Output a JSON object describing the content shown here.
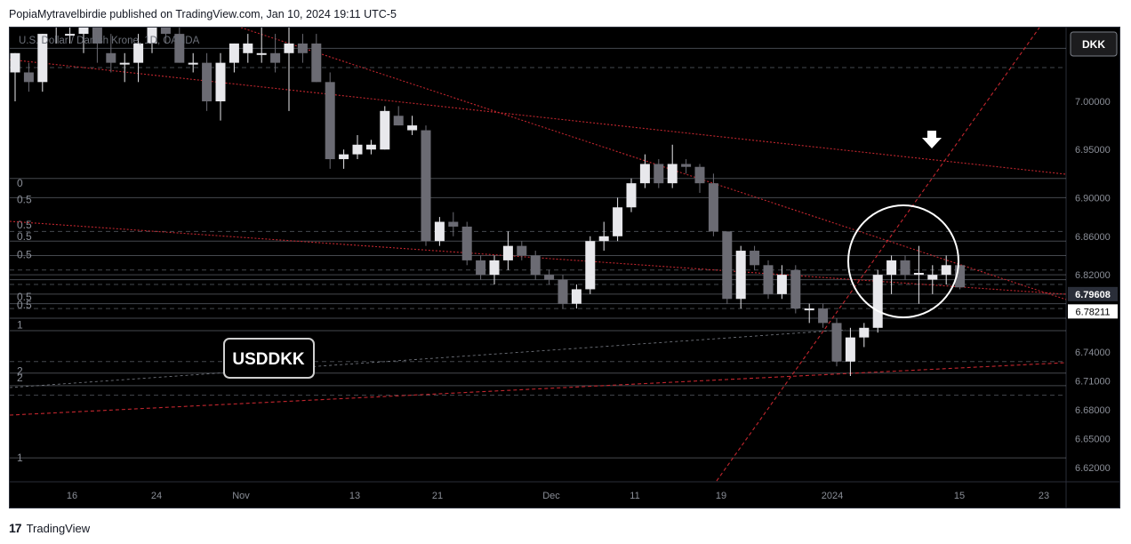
{
  "header": {
    "published_text": "PopiaMytravelbirdie published on TradingView.com, Jan 10, 2024 19:11 UTC-5"
  },
  "footer": {
    "brand_mark": "17",
    "brand": "TradingView"
  },
  "symbol_label": "U.S. Dollar / Danish Krone, 1D, OANDA",
  "annotation_label": "USDDKK",
  "chart_data": {
    "type": "candlestick",
    "currency_badge": "DKK",
    "ylim": [
      6.6,
      7.065
    ],
    "y_ticks": [
      "7.00000",
      "6.95000",
      "6.90000",
      "6.86000",
      "6.82000",
      "6.74000",
      "6.71000",
      "6.68000",
      "6.65000",
      "6.62000"
    ],
    "x_ticks": [
      "16",
      "24",
      "Nov",
      "13",
      "21",
      "Dec",
      "11",
      "19",
      "2024",
      "15",
      "23"
    ],
    "price_labels": [
      {
        "value": "6.79608",
        "style": "dark"
      },
      {
        "value": "6.78211",
        "style": "light"
      }
    ],
    "colors": {
      "background": "#000000",
      "up": "#e8e8ec",
      "down": "#6b6b73",
      "trendline": "#c2262e",
      "level": "#9aa0ad"
    },
    "candles": [
      {
        "o": 7.03,
        "h": 7.05,
        "l": 7.0,
        "c": 7.05
      },
      {
        "o": 7.03,
        "h": 7.04,
        "l": 7.01,
        "c": 7.02
      },
      {
        "o": 7.02,
        "h": 7.07,
        "l": 7.01,
        "c": 7.07
      },
      {
        "o": 7.08,
        "h": 7.1,
        "l": 7.06,
        "c": 7.09
      },
      {
        "o": 7.07,
        "h": 7.09,
        "l": 7.06,
        "c": 7.07
      },
      {
        "o": 7.07,
        "h": 7.11,
        "l": 7.05,
        "c": 7.1
      },
      {
        "o": 7.08,
        "h": 7.1,
        "l": 7.04,
        "c": 7.06
      },
      {
        "o": 7.05,
        "h": 7.07,
        "l": 7.03,
        "c": 7.04
      },
      {
        "o": 7.04,
        "h": 7.05,
        "l": 7.02,
        "c": 7.04
      },
      {
        "o": 7.04,
        "h": 7.07,
        "l": 7.02,
        "c": 7.06
      },
      {
        "o": 7.06,
        "h": 7.1,
        "l": 7.05,
        "c": 7.08
      },
      {
        "o": 7.08,
        "h": 7.09,
        "l": 7.06,
        "c": 7.07
      },
      {
        "o": 7.07,
        "h": 7.08,
        "l": 7.04,
        "c": 7.04
      },
      {
        "o": 7.04,
        "h": 7.05,
        "l": 7.03,
        "c": 7.04
      },
      {
        "o": 7.04,
        "h": 7.05,
        "l": 6.99,
        "c": 7.0
      },
      {
        "o": 7.0,
        "h": 7.05,
        "l": 6.98,
        "c": 7.04
      },
      {
        "o": 7.04,
        "h": 7.06,
        "l": 7.03,
        "c": 7.06
      },
      {
        "o": 7.05,
        "h": 7.07,
        "l": 7.04,
        "c": 7.06
      },
      {
        "o": 7.05,
        "h": 7.08,
        "l": 7.04,
        "c": 7.05
      },
      {
        "o": 7.05,
        "h": 7.07,
        "l": 7.03,
        "c": 7.04
      },
      {
        "o": 7.05,
        "h": 7.09,
        "l": 6.99,
        "c": 7.06
      },
      {
        "o": 7.06,
        "h": 7.07,
        "l": 7.04,
        "c": 7.05
      },
      {
        "o": 7.06,
        "h": 7.07,
        "l": 7.02,
        "c": 7.02
      },
      {
        "o": 7.02,
        "h": 7.03,
        "l": 6.93,
        "c": 6.94
      },
      {
        "o": 6.94,
        "h": 6.95,
        "l": 6.93,
        "c": 6.945
      },
      {
        "o": 6.945,
        "h": 6.965,
        "l": 6.94,
        "c": 6.955
      },
      {
        "o": 6.95,
        "h": 6.96,
        "l": 6.945,
        "c": 6.955
      },
      {
        "o": 6.95,
        "h": 6.995,
        "l": 6.95,
        "c": 6.99
      },
      {
        "o": 6.985,
        "h": 6.995,
        "l": 6.975,
        "c": 6.975
      },
      {
        "o": 6.97,
        "h": 6.985,
        "l": 6.965,
        "c": 6.975
      },
      {
        "o": 6.97,
        "h": 6.975,
        "l": 6.85,
        "c": 6.855
      },
      {
        "o": 6.855,
        "h": 6.88,
        "l": 6.85,
        "c": 6.875
      },
      {
        "o": 6.875,
        "h": 6.885,
        "l": 6.86,
        "c": 6.87
      },
      {
        "o": 6.87,
        "h": 6.875,
        "l": 6.83,
        "c": 6.835
      },
      {
        "o": 6.835,
        "h": 6.84,
        "l": 6.815,
        "c": 6.82
      },
      {
        "o": 6.82,
        "h": 6.84,
        "l": 6.81,
        "c": 6.835
      },
      {
        "o": 6.835,
        "h": 6.865,
        "l": 6.825,
        "c": 6.85
      },
      {
        "o": 6.85,
        "h": 6.855,
        "l": 6.835,
        "c": 6.84
      },
      {
        "o": 6.84,
        "h": 6.845,
        "l": 6.815,
        "c": 6.82
      },
      {
        "o": 6.82,
        "h": 6.825,
        "l": 6.81,
        "c": 6.815
      },
      {
        "o": 6.815,
        "h": 6.82,
        "l": 6.785,
        "c": 6.79
      },
      {
        "o": 6.79,
        "h": 6.81,
        "l": 6.785,
        "c": 6.805
      },
      {
        "o": 6.805,
        "h": 6.86,
        "l": 6.8,
        "c": 6.855
      },
      {
        "o": 6.855,
        "h": 6.875,
        "l": 6.845,
        "c": 6.86
      },
      {
        "o": 6.86,
        "h": 6.9,
        "l": 6.855,
        "c": 6.89
      },
      {
        "o": 6.89,
        "h": 6.92,
        "l": 6.885,
        "c": 6.915
      },
      {
        "o": 6.915,
        "h": 6.945,
        "l": 6.91,
        "c": 6.935
      },
      {
        "o": 6.935,
        "h": 6.94,
        "l": 6.91,
        "c": 6.915
      },
      {
        "o": 6.915,
        "h": 6.955,
        "l": 6.91,
        "c": 6.935
      },
      {
        "o": 6.935,
        "h": 6.94,
        "l": 6.925,
        "c": 6.932
      },
      {
        "o": 6.932,
        "h": 6.935,
        "l": 6.905,
        "c": 6.915
      },
      {
        "o": 6.915,
        "h": 6.925,
        "l": 6.86,
        "c": 6.865
      },
      {
        "o": 6.865,
        "h": 6.865,
        "l": 6.79,
        "c": 6.795
      },
      {
        "o": 6.795,
        "h": 6.85,
        "l": 6.785,
        "c": 6.845
      },
      {
        "o": 6.845,
        "h": 6.85,
        "l": 6.825,
        "c": 6.83
      },
      {
        "o": 6.83,
        "h": 6.835,
        "l": 6.795,
        "c": 6.8
      },
      {
        "o": 6.8,
        "h": 6.83,
        "l": 6.795,
        "c": 6.82
      },
      {
        "o": 6.825,
        "h": 6.83,
        "l": 6.78,
        "c": 6.785
      },
      {
        "o": 6.785,
        "h": 6.79,
        "l": 6.77,
        "c": 6.785
      },
      {
        "o": 6.785,
        "h": 6.79,
        "l": 6.765,
        "c": 6.77
      },
      {
        "o": 6.77,
        "h": 6.775,
        "l": 6.725,
        "c": 6.73
      },
      {
        "o": 6.73,
        "h": 6.765,
        "l": 6.715,
        "c": 6.755
      },
      {
        "o": 6.755,
        "h": 6.77,
        "l": 6.745,
        "c": 6.765
      },
      {
        "o": 6.765,
        "h": 6.825,
        "l": 6.76,
        "c": 6.82
      },
      {
        "o": 6.82,
        "h": 6.84,
        "l": 6.8,
        "c": 6.835
      },
      {
        "o": 6.835,
        "h": 6.84,
        "l": 6.815,
        "c": 6.82
      },
      {
        "o": 6.82,
        "h": 6.85,
        "l": 6.79,
        "c": 6.822
      },
      {
        "o": 6.815,
        "h": 6.83,
        "l": 6.8,
        "c": 6.82
      },
      {
        "o": 6.82,
        "h": 6.84,
        "l": 6.81,
        "c": 6.83
      },
      {
        "o": 6.83,
        "h": 6.83,
        "l": 6.805,
        "c": 6.807
      }
    ]
  }
}
